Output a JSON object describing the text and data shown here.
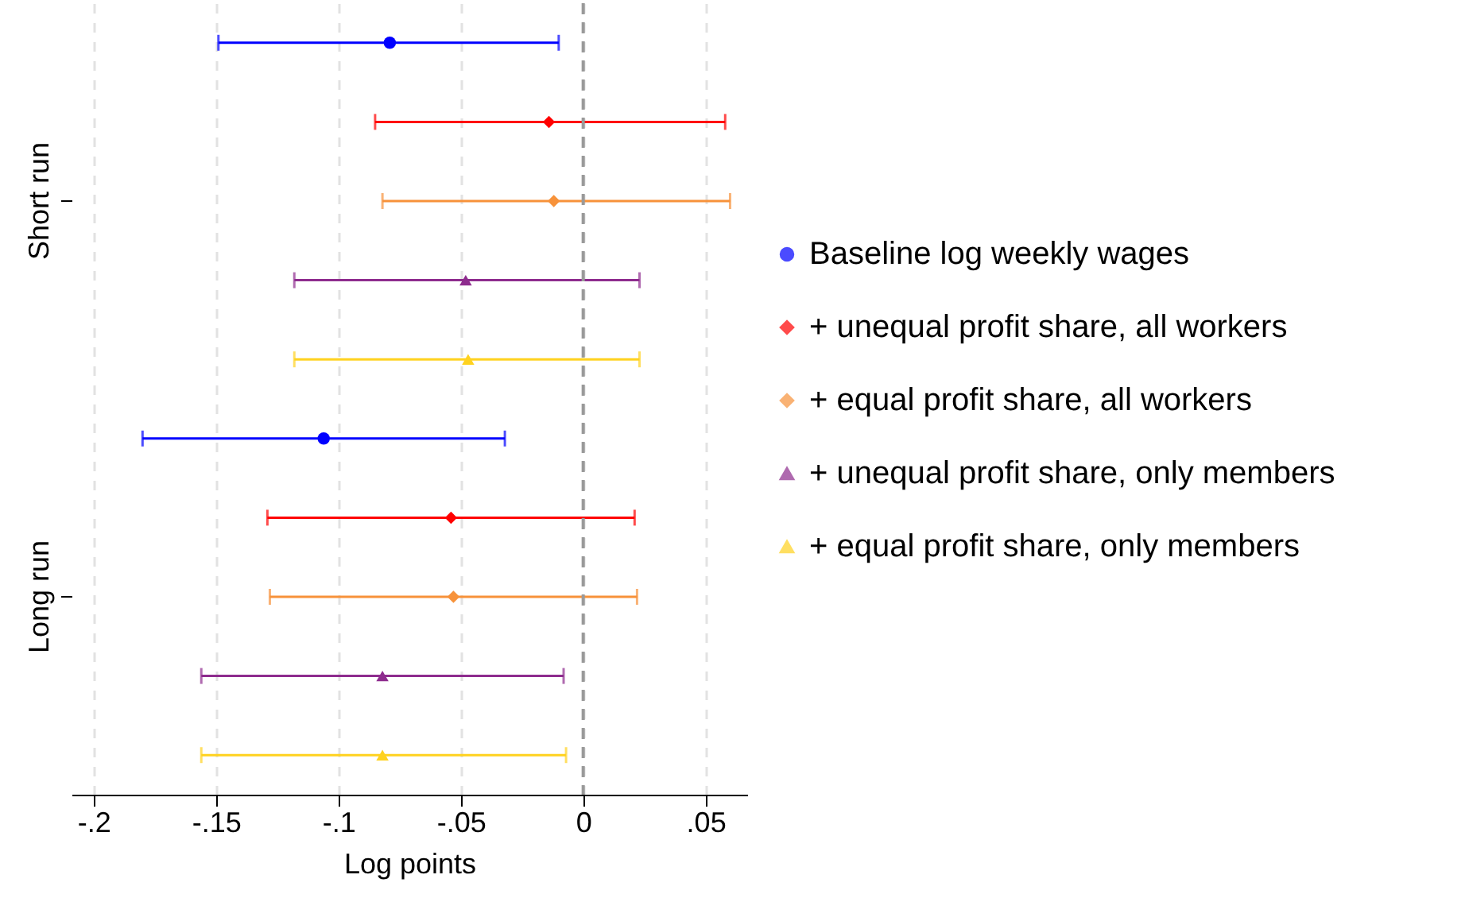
{
  "chart_data": {
    "type": "scatter",
    "orientation": "horizontal",
    "xlabel": "Log points",
    "categories": [
      "Short run",
      "Long run"
    ],
    "series": [
      {
        "name": "Baseline log weekly wages",
        "color": "#0000ff",
        "marker": "circle",
        "values": [
          -0.079,
          -0.106
        ],
        "errors": [
          [
            -0.149,
            -0.01
          ],
          [
            -0.18,
            -0.032
          ]
        ]
      },
      {
        "name": "+ unequal profit share, all workers",
        "color": "#ff0000",
        "marker": "diamond",
        "values": [
          -0.014,
          -0.054
        ],
        "errors": [
          [
            -0.085,
            0.058
          ],
          [
            -0.129,
            0.021
          ]
        ]
      },
      {
        "name": "+ equal profit share, all workers",
        "color": "#f7923a",
        "marker": "diamond",
        "values": [
          -0.012,
          -0.053
        ],
        "errors": [
          [
            -0.082,
            0.06
          ],
          [
            -0.128,
            0.022
          ]
        ]
      },
      {
        "name": "+ unequal profit share, only members",
        "color": "#8e2c8e",
        "marker": "triangle",
        "values": [
          -0.048,
          -0.082
        ],
        "errors": [
          [
            -0.118,
            0.023
          ],
          [
            -0.156,
            -0.008
          ]
        ]
      },
      {
        "name": "+ equal profit share, only members",
        "color": "#ffd21f",
        "marker": "triangle",
        "values": [
          -0.047,
          -0.082
        ],
        "errors": [
          [
            -0.118,
            0.023
          ],
          [
            -0.156,
            -0.007
          ]
        ]
      }
    ],
    "xlim": [
      -0.209,
      0.067
    ],
    "xticks": [
      {
        "value": -0.2,
        "label": "-.2"
      },
      {
        "value": -0.15,
        "label": "-.15"
      },
      {
        "value": -0.1,
        "label": "-.1"
      },
      {
        "value": -0.05,
        "label": "-.05"
      },
      0,
      {
        "value": 0.05,
        "label": ".05"
      }
    ],
    "grid": "x",
    "legend": "right",
    "ref_lines": [
      {
        "axis": "x",
        "value": 0,
        "color": "#9a9a9a",
        "line_style": "dashed"
      }
    ]
  }
}
